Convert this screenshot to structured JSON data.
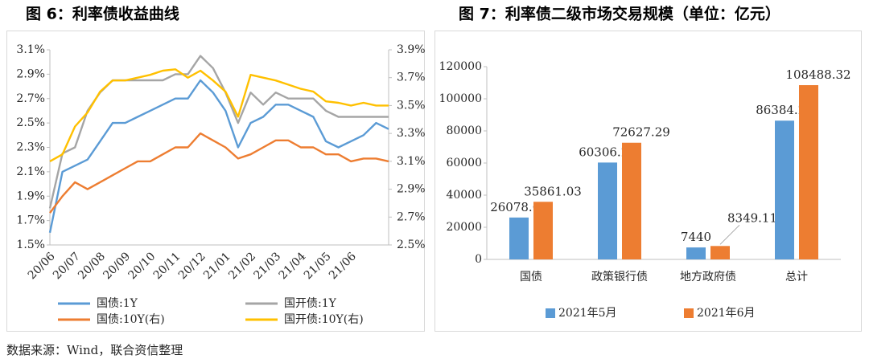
{
  "chart_data": [
    {
      "type": "line",
      "title": "图 6：利率债收益曲线",
      "categories": [
        "20/06",
        null,
        "20/07",
        null,
        "20/08",
        null,
        "20/09",
        null,
        "20/10",
        null,
        "20/11",
        null,
        "20/12",
        null,
        "21/01",
        null,
        "21/02",
        null,
        "21/03",
        null,
        "21/04",
        null,
        "21/05",
        null,
        "21/06",
        null,
        null,
        null
      ],
      "ylim": [
        1.5,
        3.1
      ],
      "yticks": [
        {
          "value": 1.5,
          "label": "1.5%"
        },
        {
          "value": 1.7,
          "label": "1.7%"
        },
        {
          "value": 1.9,
          "label": "1.9%"
        },
        {
          "value": 2.1,
          "label": "2.1%"
        },
        {
          "value": 2.3,
          "label": "2.3%"
        },
        {
          "value": 2.5,
          "label": "2.5%"
        },
        {
          "value": 2.7,
          "label": "2.7%"
        },
        {
          "value": 2.9,
          "label": "2.9%"
        },
        {
          "value": 3.1,
          "label": "3.1%"
        }
      ],
      "y2lim": [
        2.5,
        3.9
      ],
      "y2ticks": [
        {
          "value": 2.5,
          "label": "2.5%"
        },
        {
          "value": 2.7,
          "label": "2.7%"
        },
        {
          "value": 2.9,
          "label": "2.9%"
        },
        {
          "value": 3.1,
          "label": "3.1%"
        },
        {
          "value": 3.3,
          "label": "3.3%"
        },
        {
          "value": 3.5,
          "label": "3.5%"
        },
        {
          "value": 3.7,
          "label": "3.7%"
        },
        {
          "value": 3.9,
          "label": "3.9%"
        }
      ],
      "grid": false,
      "series": [
        {
          "name": "国债:1Y",
          "color": "#5b9bd5",
          "values": [
            1.6,
            2.1,
            2.15,
            2.2,
            2.35,
            2.5,
            2.5,
            2.55,
            2.6,
            2.65,
            2.7,
            2.7,
            2.85,
            2.75,
            2.6,
            2.3,
            2.5,
            2.55,
            2.65,
            2.65,
            2.6,
            2.55,
            2.35,
            2.3,
            2.35,
            2.4,
            2.5,
            2.45
          ]
        },
        {
          "name": "国开债:1Y",
          "color": "#a5a5a5",
          "values": [
            1.8,
            2.25,
            2.3,
            2.6,
            2.75,
            2.85,
            2.85,
            2.85,
            2.85,
            2.85,
            2.9,
            2.9,
            3.05,
            2.95,
            2.75,
            2.5,
            2.75,
            2.65,
            2.75,
            2.7,
            2.7,
            2.7,
            2.6,
            2.55,
            2.55,
            2.55,
            2.55,
            2.55
          ]
        },
        {
          "name": "国债:10Y(右)",
          "color": "#ed7d31",
          "axis": "y2",
          "values": [
            2.73,
            2.85,
            2.95,
            2.9,
            2.95,
            3.0,
            3.05,
            3.1,
            3.1,
            3.15,
            3.2,
            3.2,
            3.3,
            3.25,
            3.2,
            3.12,
            3.15,
            3.2,
            3.25,
            3.25,
            3.2,
            3.2,
            3.15,
            3.15,
            3.1,
            3.12,
            3.12,
            3.1
          ]
        },
        {
          "name": "国开债:10Y(右)",
          "color": "#ffc000",
          "axis": "y2",
          "values": [
            3.1,
            3.15,
            3.35,
            3.45,
            3.6,
            3.68,
            3.68,
            3.7,
            3.72,
            3.75,
            3.76,
            3.7,
            3.75,
            3.68,
            3.6,
            3.42,
            3.72,
            3.7,
            3.68,
            3.65,
            3.62,
            3.6,
            3.53,
            3.52,
            3.5,
            3.52,
            3.5,
            3.5
          ]
        }
      ]
    },
    {
      "type": "bar",
      "title": "图 7：利率债二级市场交易规模（单位：亿元）",
      "categories": [
        "国债",
        "政策银行债",
        "地方政府债",
        "总计"
      ],
      "ylim": [
        0,
        120000
      ],
      "yticks": [
        0,
        20000,
        40000,
        60000,
        80000,
        100000,
        120000
      ],
      "grid": false,
      "series": [
        {
          "name": "2021年5月",
          "color": "#5b9bd5",
          "values": [
            26078.03,
            60306.22,
            7440,
            86384.25
          ]
        },
        {
          "name": "2021年6月",
          "color": "#ed7d31",
          "values": [
            35861.03,
            72627.29,
            8349.11,
            108488.32
          ]
        }
      ]
    }
  ],
  "source": "数据来源：Wind，联合资信整理"
}
